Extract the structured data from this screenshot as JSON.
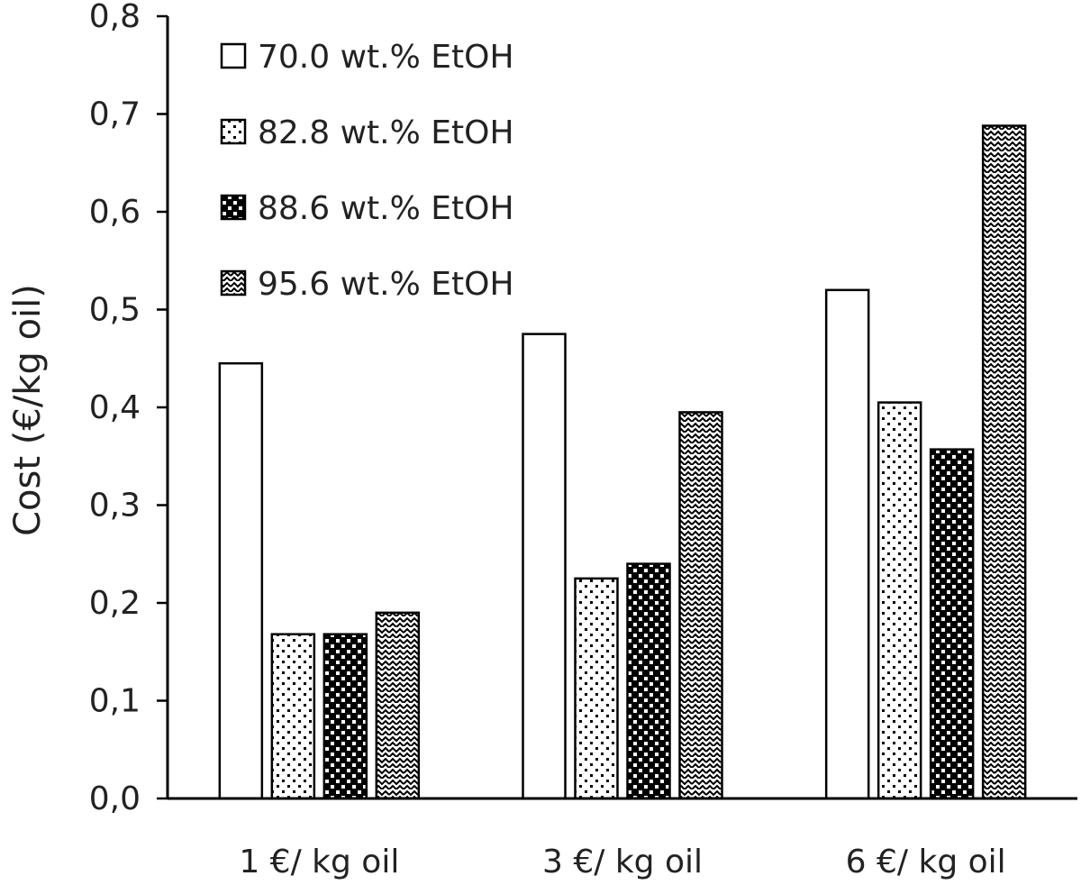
{
  "chart_data": {
    "type": "bar",
    "title": "",
    "xlabel": "",
    "ylabel": "Cost (€/kg oil)",
    "ylim": [
      0,
      0.8
    ],
    "yticks": [
      "0,0",
      "0,1",
      "0,2",
      "0,3",
      "0,4",
      "0,5",
      "0,6",
      "0,7",
      "0,8"
    ],
    "grid": false,
    "legend_position": "top-left",
    "categories": [
      "1 €/ kg oil",
      "3 €/ kg oil",
      "6 €/ kg oil"
    ],
    "series": [
      {
        "name": "70.0 wt.% EtOH",
        "pattern": "none",
        "values": [
          0.445,
          0.475,
          0.52
        ]
      },
      {
        "name": "82.8 wt.% EtOH",
        "pattern": "dots",
        "values": [
          0.168,
          0.225,
          0.405
        ]
      },
      {
        "name": "88.6 wt.% EtOH",
        "pattern": "checker",
        "values": [
          0.168,
          0.24,
          0.357
        ]
      },
      {
        "name": "95.6 wt.% EtOH",
        "pattern": "zigzag",
        "values": [
          0.19,
          0.395,
          0.688
        ]
      }
    ],
    "colors": {
      "bar_fill": "#ffffff",
      "bar_stroke": "#000000",
      "pattern": "#000000",
      "axis": "#000000"
    }
  }
}
